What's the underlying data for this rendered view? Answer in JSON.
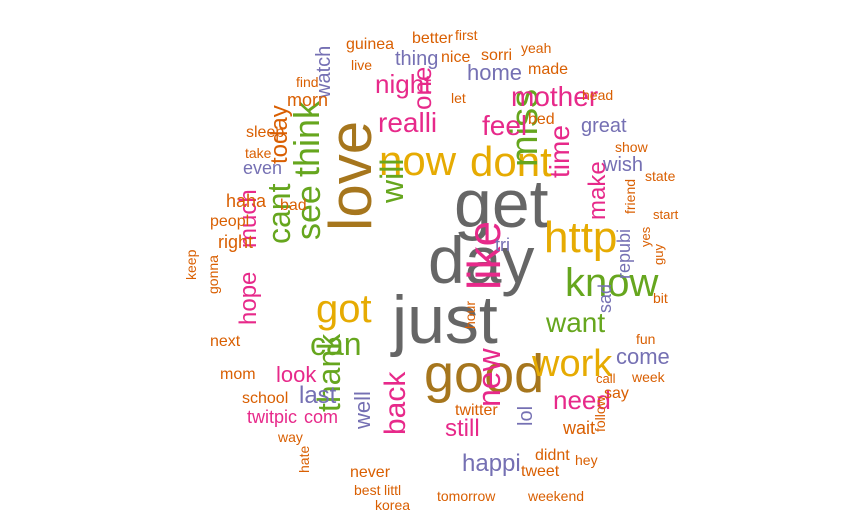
{
  "palette": {
    "orange": "#d95f02",
    "purple": "#7570b3",
    "pink": "#e7298a",
    "green": "#66a61e",
    "gold": "#e6ab02",
    "brown": "#a6761d",
    "gray": "#666666"
  },
  "words": [
    {
      "text": "get",
      "color": "gray"
    },
    {
      "text": "day",
      "color": "gray"
    },
    {
      "text": "just",
      "color": "gray"
    },
    {
      "text": "love",
      "color": "brown"
    },
    {
      "text": "good",
      "color": "brown"
    },
    {
      "text": "like",
      "color": "pink"
    },
    {
      "text": "http",
      "color": "gold"
    },
    {
      "text": "now",
      "color": "gold"
    },
    {
      "text": "dont",
      "color": "gold"
    },
    {
      "text": "know",
      "color": "green"
    },
    {
      "text": "miss",
      "color": "green"
    },
    {
      "text": "work",
      "color": "gold"
    },
    {
      "text": "got",
      "color": "gold"
    },
    {
      "text": "think",
      "color": "green"
    },
    {
      "text": "see",
      "color": "green"
    },
    {
      "text": "will",
      "color": "green"
    },
    {
      "text": "cant",
      "color": "green"
    },
    {
      "text": "can",
      "color": "green"
    },
    {
      "text": "thank",
      "color": "green"
    },
    {
      "text": "new",
      "color": "pink"
    },
    {
      "text": "back",
      "color": "pink"
    },
    {
      "text": "time",
      "color": "pink"
    },
    {
      "text": "want",
      "color": "green"
    },
    {
      "text": "today",
      "color": "orange"
    },
    {
      "text": "mother",
      "color": "pink"
    },
    {
      "text": "realli",
      "color": "pink"
    },
    {
      "text": "feel",
      "color": "pink"
    },
    {
      "text": "night",
      "color": "pink"
    },
    {
      "text": "one",
      "color": "pink"
    },
    {
      "text": "make",
      "color": "pink"
    },
    {
      "text": "need",
      "color": "pink"
    },
    {
      "text": "much",
      "color": "pink"
    },
    {
      "text": "hope",
      "color": "pink"
    },
    {
      "text": "still",
      "color": "pink"
    },
    {
      "text": "happi",
      "color": "purple"
    },
    {
      "text": "last",
      "color": "purple"
    },
    {
      "text": "look",
      "color": "pink"
    },
    {
      "text": "come",
      "color": "purple"
    },
    {
      "text": "well",
      "color": "purple"
    },
    {
      "text": "home",
      "color": "purple"
    },
    {
      "text": "great",
      "color": "purple"
    },
    {
      "text": "lol",
      "color": "purple"
    },
    {
      "text": "thing",
      "color": "purple"
    },
    {
      "text": "watch",
      "color": "purple"
    },
    {
      "text": "wish",
      "color": "purple"
    },
    {
      "text": "twitpic",
      "color": "pink"
    },
    {
      "text": "com",
      "color": "pink"
    },
    {
      "text": "twitter",
      "color": "orange"
    },
    {
      "text": "repubi",
      "color": "purple"
    },
    {
      "text": "sad",
      "color": "purple"
    },
    {
      "text": "tri",
      "color": "purple"
    },
    {
      "text": "morn",
      "color": "orange"
    },
    {
      "text": "sleep",
      "color": "orange"
    },
    {
      "text": "haha",
      "color": "orange"
    },
    {
      "text": "right",
      "color": "orange"
    },
    {
      "text": "even",
      "color": "purple"
    },
    {
      "text": "wait",
      "color": "orange"
    },
    {
      "text": "tweet",
      "color": "orange"
    },
    {
      "text": "never",
      "color": "orange"
    },
    {
      "text": "didnt",
      "color": "orange"
    },
    {
      "text": "school",
      "color": "orange"
    },
    {
      "text": "better",
      "color": "orange"
    },
    {
      "text": "guinea",
      "color": "orange"
    },
    {
      "text": "nice",
      "color": "orange"
    },
    {
      "text": "sorri",
      "color": "orange"
    },
    {
      "text": "made",
      "color": "orange"
    },
    {
      "text": "peopl",
      "color": "orange"
    },
    {
      "text": "bad",
      "color": "orange"
    },
    {
      "text": "take",
      "color": "orange"
    },
    {
      "text": "next",
      "color": "orange"
    },
    {
      "text": "mom",
      "color": "orange"
    },
    {
      "text": "say",
      "color": "orange"
    },
    {
      "text": "fun",
      "color": "orange"
    },
    {
      "text": "bed",
      "color": "orange"
    },
    {
      "text": "live",
      "color": "orange"
    },
    {
      "text": "let",
      "color": "orange"
    },
    {
      "text": "hour",
      "color": "orange"
    },
    {
      "text": "friend",
      "color": "orange"
    },
    {
      "text": "head",
      "color": "orange"
    },
    {
      "text": "show",
      "color": "orange"
    },
    {
      "text": "state",
      "color": "orange"
    },
    {
      "text": "find",
      "color": "orange"
    },
    {
      "text": "first",
      "color": "orange"
    },
    {
      "text": "yeah",
      "color": "orange"
    },
    {
      "text": "keep",
      "color": "orange"
    },
    {
      "text": "gonna",
      "color": "orange"
    },
    {
      "text": "way",
      "color": "orange"
    },
    {
      "text": "hate",
      "color": "orange"
    },
    {
      "text": "best",
      "color": "orange"
    },
    {
      "text": "littl",
      "color": "orange"
    },
    {
      "text": "korea",
      "color": "orange"
    },
    {
      "text": "tomorrow",
      "color": "orange"
    },
    {
      "text": "weekend",
      "color": "orange"
    },
    {
      "text": "call",
      "color": "orange"
    },
    {
      "text": "week",
      "color": "orange"
    },
    {
      "text": "follow",
      "color": "orange"
    },
    {
      "text": "hey",
      "color": "orange"
    },
    {
      "text": "start",
      "color": "orange"
    },
    {
      "text": "yes",
      "color": "orange"
    },
    {
      "text": "guy",
      "color": "orange"
    },
    {
      "text": "bit",
      "color": "orange"
    }
  ]
}
